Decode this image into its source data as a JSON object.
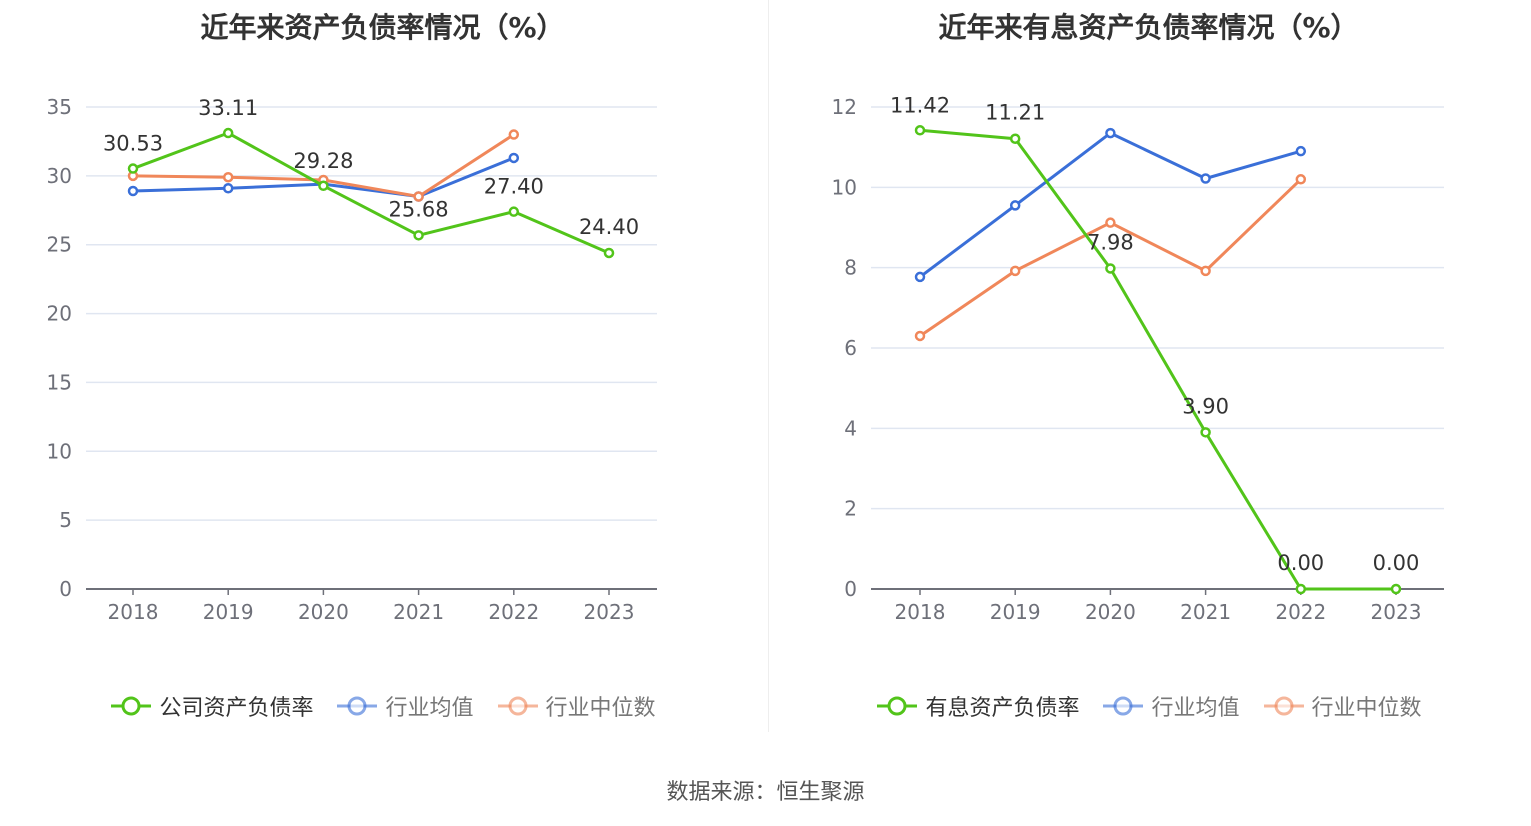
{
  "source_text": "数据来源：恒生聚源",
  "chart_data": [
    {
      "type": "line",
      "title": "近年来资产负债率情况（%）",
      "categories": [
        "2018",
        "2019",
        "2020",
        "2021",
        "2022",
        "2023"
      ],
      "ylim": [
        0,
        35
      ],
      "yticks": [
        0,
        5,
        10,
        15,
        20,
        25,
        30,
        35
      ],
      "grid": true,
      "legend_position": "bottom",
      "series": [
        {
          "name": "公司资产负债率",
          "color": "#52c41a",
          "values": [
            30.53,
            33.11,
            29.28,
            25.68,
            27.4,
            24.4
          ],
          "labels": [
            "30.53",
            "33.11",
            "29.28",
            "25.68",
            "27.40",
            "24.40"
          ]
        },
        {
          "name": "行业均值",
          "color": "#3a6fd8",
          "values": [
            28.9,
            29.1,
            29.4,
            28.5,
            31.3,
            null
          ]
        },
        {
          "name": "行业中位数",
          "color": "#f0875a",
          "values": [
            30.0,
            29.9,
            29.7,
            28.5,
            33.0,
            null
          ]
        }
      ]
    },
    {
      "type": "line",
      "title": "近年来有息资产负债率情况（%）",
      "categories": [
        "2018",
        "2019",
        "2020",
        "2021",
        "2022",
        "2023"
      ],
      "ylim": [
        0,
        12
      ],
      "yticks": [
        0,
        2,
        4,
        6,
        8,
        10,
        12
      ],
      "grid": true,
      "legend_position": "bottom",
      "series": [
        {
          "name": "有息资产负债率",
          "color": "#52c41a",
          "values": [
            11.42,
            11.21,
            7.98,
            3.9,
            0.0,
            0.0
          ],
          "labels": [
            "11.42",
            "11.21",
            "7.98",
            "3.90",
            "0.00",
            "0.00"
          ]
        },
        {
          "name": "行业均值",
          "color": "#3a6fd8",
          "values": [
            7.77,
            9.55,
            11.35,
            10.22,
            10.9,
            null
          ]
        },
        {
          "name": "行业中位数",
          "color": "#f0875a",
          "values": [
            6.3,
            7.92,
            9.12,
            7.92,
            10.2,
            null
          ]
        }
      ]
    }
  ]
}
